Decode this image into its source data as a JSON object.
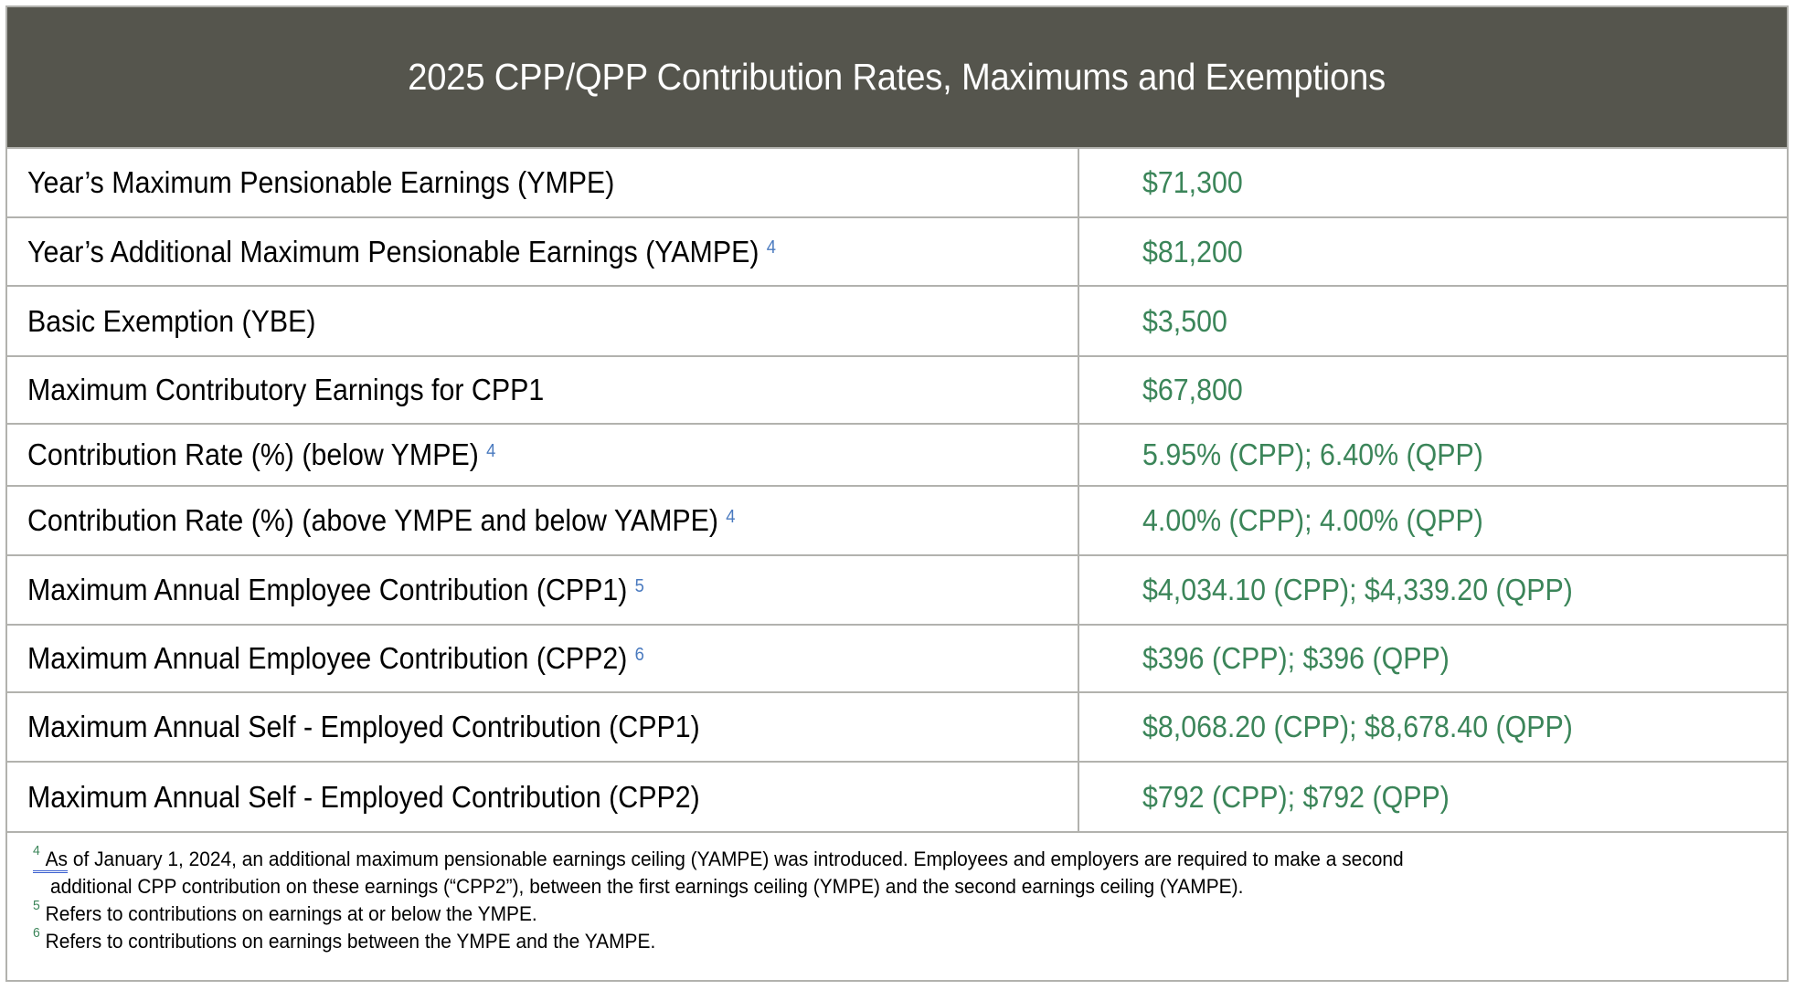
{
  "title": "2025 CPP/QPP Contribution Rates, Maximums and Exemptions",
  "colors": {
    "header_bg": "#55554d",
    "value_text": "#3b8559",
    "superscript_ref": "#4a7abf",
    "footnote_marker": "#3b8559",
    "grid": "#b2b2ae"
  },
  "rows": [
    {
      "label": "Year’s Maximum Pensionable Earnings (YMPE)",
      "note": "",
      "value": "$71,300"
    },
    {
      "label": "Year’s Additional Maximum Pensionable Earnings (YAMPE)",
      "note": "4",
      "value": "$81,200"
    },
    {
      "label": "Basic Exemption (YBE)",
      "note": "",
      "value": "$3,500"
    },
    {
      "label": "Maximum Contributory Earnings for CPP1",
      "note": "",
      "value": "$67,800"
    },
    {
      "label": "Contribution Rate (%) (below YMPE)",
      "note": "4",
      "value": "5.95% (CPP); 6.40% (QPP)"
    },
    {
      "label": "Contribution Rate (%) (above YMPE and below YAMPE)",
      "note": "4",
      "value": "4.00% (CPP); 4.00% (QPP)"
    },
    {
      "label": "Maximum Annual Employee Contribution (CPP1)",
      "note": "5",
      "value": "$4,034.10 (CPP); $4,339.20 (QPP)"
    },
    {
      "label": "Maximum Annual Employee Contribution (CPP2)",
      "note": "6",
      "value": "$396 (CPP); $396 (QPP)"
    },
    {
      "label": "Maximum Annual Self - Employed Contribution (CPP1)",
      "note": "",
      "value": "$8,068.20 (CPP); $8,678.40 (QPP)"
    },
    {
      "label": "Maximum Annual Self - Employed Contribution (CPP2)",
      "note": "",
      "value": "$792 (CPP); $792 (QPP)"
    }
  ],
  "footnotes": [
    {
      "marker": "4",
      "underlined_word": "As",
      "line1": " of January 1, 2024, an additional maximum pensionable earnings ceiling (YAMPE) was introduced. Employees and employers are required to make a second",
      "line2": "additional CPP contribution on these earnings (“CPP2”), between the first earnings ceiling (YMPE) and the second earnings ceiling (YAMPE)."
    },
    {
      "marker": "5",
      "text": "Refers to contributions on earnings at or below the YMPE."
    },
    {
      "marker": "6",
      "text": "Refers to contributions on earnings between the YMPE and the YAMPE."
    }
  ]
}
